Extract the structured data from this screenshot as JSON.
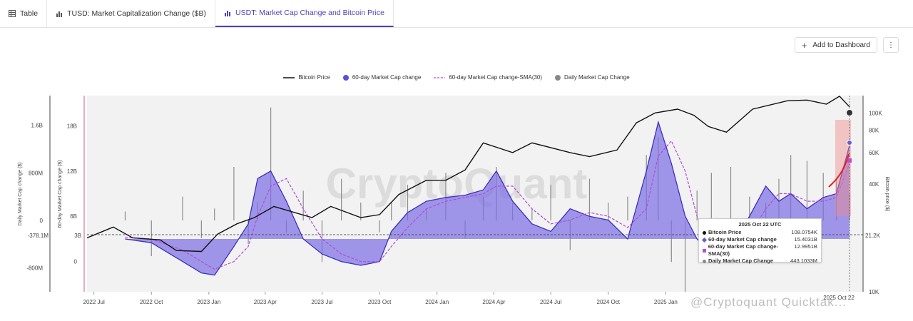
{
  "tabs": [
    {
      "label": "Table",
      "icon": "table-icon"
    },
    {
      "label": "TUSD: Market Capitalization Change ($B)",
      "icon": "bar-chart-icon"
    },
    {
      "label": "USDT: Market Cap Change and Bitcoin Price",
      "icon": "bar-chart-icon"
    }
  ],
  "toolbar": {
    "add_label": "Add to Dashboard",
    "more_label": "⋮"
  },
  "legend": [
    {
      "label": "Bitcoin Price",
      "color": "#111111",
      "style": "line"
    },
    {
      "label": "60-day Market Cap change",
      "color": "#6a5acd",
      "style": "dot"
    },
    {
      "label": "60-day Market Cap change-SMA(30)",
      "color": "#b44ad6",
      "style": "dashed"
    },
    {
      "label": "Daily Market Cap Change",
      "color": "#888888",
      "style": "dot"
    }
  ],
  "axes": {
    "left1_title": "Daily Market Cap change ($)",
    "left1_ticks": [
      "1.6B",
      "800M",
      "0",
      "-800M"
    ],
    "left1_marker": "-378.1M",
    "left2_title": "60-day Market Cap change ($)",
    "left2_ticks": [
      "18B",
      "12B",
      "6B",
      "0"
    ],
    "left2_marker": "3B",
    "right_title": "Bitcoin price ($)",
    "right_ticks": [
      "100K",
      "80K",
      "60K",
      "40K",
      "10K"
    ],
    "right_marker": "21.2K",
    "x_ticks": [
      "2022 Jul",
      "2022 Oct",
      "2023 Jan",
      "2023 Apr",
      "2023 Jul",
      "2023 Oct",
      "2024 Jan",
      "2024 Apr",
      "2024 Jul",
      "2024 Oct",
      "2025 Jan"
    ],
    "x_last": "2025 Oct 22"
  },
  "tooltip": {
    "title": "2025 Oct 22 UTC",
    "rows": [
      {
        "label": "Bitcoin Price",
        "value": "108.0754K",
        "color": "#111111"
      },
      {
        "label": "60-day Market Cap change",
        "value": "15.4031B",
        "color": "#6a5acd"
      },
      {
        "label": "60-day Market Cap change-SMA(30)",
        "value": "12.9951B",
        "color": "#c04ec8"
      },
      {
        "label": "Daily Market Cap Change",
        "value": "443.1033M",
        "color": "#888888"
      }
    ]
  },
  "watermark_brand": "CryptoQuant",
  "watermark_text": "@Cryptoquant Quicktak...",
  "chart_data": {
    "type": "area",
    "x_range": [
      "2022-06-20",
      "2025-10-22"
    ],
    "series": [
      {
        "name": "60-day Market Cap change",
        "unit": "B",
        "x": [
          "2022-08-20",
          "2022-10-01",
          "2022-11-20",
          "2022-12-20",
          "2023-01-10",
          "2023-02-10",
          "2023-03-05",
          "2023-03-20",
          "2023-04-10",
          "2023-05-05",
          "2023-06-01",
          "2023-07-01",
          "2023-08-01",
          "2023-09-01",
          "2023-10-01",
          "2023-10-20",
          "2023-11-15",
          "2023-12-15",
          "2024-01-15",
          "2024-02-15",
          "2024-03-15",
          "2024-04-05",
          "2024-05-01",
          "2024-06-01",
          "2024-07-01",
          "2024-08-01",
          "2024-09-01",
          "2024-10-01",
          "2024-11-01",
          "2024-12-01",
          "2024-12-20",
          "2025-01-10",
          "2025-02-01",
          "2025-02-20",
          "2025-03-15",
          "2025-04-15",
          "2025-05-15",
          "2025-06-10",
          "2025-07-01",
          "2025-07-20",
          "2025-08-15",
          "2025-09-10",
          "2025-10-01",
          "2025-10-22"
        ],
        "values": [
          3,
          2.5,
          0,
          -1.5,
          -1.8,
          2,
          5,
          11,
          12,
          8,
          3,
          1,
          0,
          -0.5,
          0,
          4,
          6.5,
          8,
          8.5,
          8.8,
          9.5,
          12,
          8,
          5,
          4,
          7,
          6,
          5.5,
          3,
          12,
          18.5,
          13,
          6,
          3,
          1,
          2,
          6,
          10,
          8,
          9,
          7,
          8.5,
          9,
          15.4
        ]
      },
      {
        "name": "60-day Market Cap change-SMA(30)",
        "unit": "B",
        "x": [
          "2022-08-20",
          "2022-10-01",
          "2022-11-20",
          "2022-12-20",
          "2023-01-10",
          "2023-02-10",
          "2023-03-05",
          "2023-03-20",
          "2023-04-10",
          "2023-05-05",
          "2023-06-01",
          "2023-07-01",
          "2023-08-01",
          "2023-09-01",
          "2023-10-01",
          "2023-10-20",
          "2023-11-15",
          "2023-12-15",
          "2024-01-15",
          "2024-02-15",
          "2024-03-15",
          "2024-04-05",
          "2024-05-01",
          "2024-06-01",
          "2024-07-01",
          "2024-08-01",
          "2024-09-01",
          "2024-10-01",
          "2024-11-01",
          "2024-12-01",
          "2024-12-20",
          "2025-01-10",
          "2025-02-01",
          "2025-02-20",
          "2025-03-15",
          "2025-04-15",
          "2025-05-15",
          "2025-06-10",
          "2025-07-01",
          "2025-07-20",
          "2025-08-15",
          "2025-09-10",
          "2025-10-01",
          "2025-10-22"
        ],
        "values": [
          3.2,
          3,
          1.5,
          0,
          -1,
          0,
          2,
          6,
          10,
          11,
          7,
          3,
          1,
          0,
          0,
          2,
          4.5,
          7,
          8,
          8.5,
          9,
          10,
          10,
          7,
          5,
          5.5,
          6.5,
          6,
          4.5,
          7,
          14,
          16,
          12,
          6,
          2.5,
          1.5,
          3.5,
          7,
          9,
          9,
          8,
          8,
          8.5,
          13
        ]
      },
      {
        "name": "Bitcoin Price",
        "unit": "USD",
        "x": [
          "2022-06-20",
          "2022-08-01",
          "2022-09-01",
          "2022-10-15",
          "2022-11-10",
          "2022-12-20",
          "2023-01-15",
          "2023-02-15",
          "2023-03-15",
          "2023-04-15",
          "2023-06-15",
          "2023-07-15",
          "2023-09-01",
          "2023-10-01",
          "2023-11-01",
          "2023-12-15",
          "2024-01-15",
          "2024-02-15",
          "2024-03-15",
          "2024-05-01",
          "2024-06-01",
          "2024-08-01",
          "2024-09-01",
          "2024-10-15",
          "2024-11-15",
          "2024-12-15",
          "2025-01-20",
          "2025-02-15",
          "2025-03-10",
          "2025-04-08",
          "2025-05-20",
          "2025-07-15",
          "2025-08-15",
          "2025-09-15",
          "2025-10-06",
          "2025-10-22"
        ],
        "values": [
          20000,
          23000,
          20000,
          19500,
          17000,
          16800,
          21000,
          24000,
          26000,
          30000,
          26000,
          30000,
          26000,
          27000,
          35000,
          42000,
          42000,
          48000,
          68000,
          60000,
          68000,
          60000,
          57000,
          62000,
          88000,
          100000,
          105000,
          97000,
          84000,
          78000,
          105000,
          117000,
          118000,
          112000,
          124000,
          108075
        ]
      },
      {
        "name": "Daily Market Cap Change",
        "unit": "USD",
        "note": "bars",
        "values_M": [
          150,
          -600,
          400,
          -300,
          200,
          900,
          -400,
          300,
          1900,
          -200,
          500,
          -700,
          700,
          300,
          -200,
          300,
          600,
          200,
          800,
          -300,
          400,
          900,
          300,
          200,
          600,
          -500,
          700,
          300,
          400,
          1100,
          1400,
          -700,
          -1200,
          500,
          800,
          900,
          400,
          300,
          700,
          1100,
          1000,
          800,
          700,
          443.1
        ]
      }
    ],
    "ylim_left1": [
      -1200,
      2100
    ],
    "ylim_left2": [
      -4,
      22
    ],
    "ylim_right": [
      10000,
      125000
    ],
    "grid": false
  }
}
